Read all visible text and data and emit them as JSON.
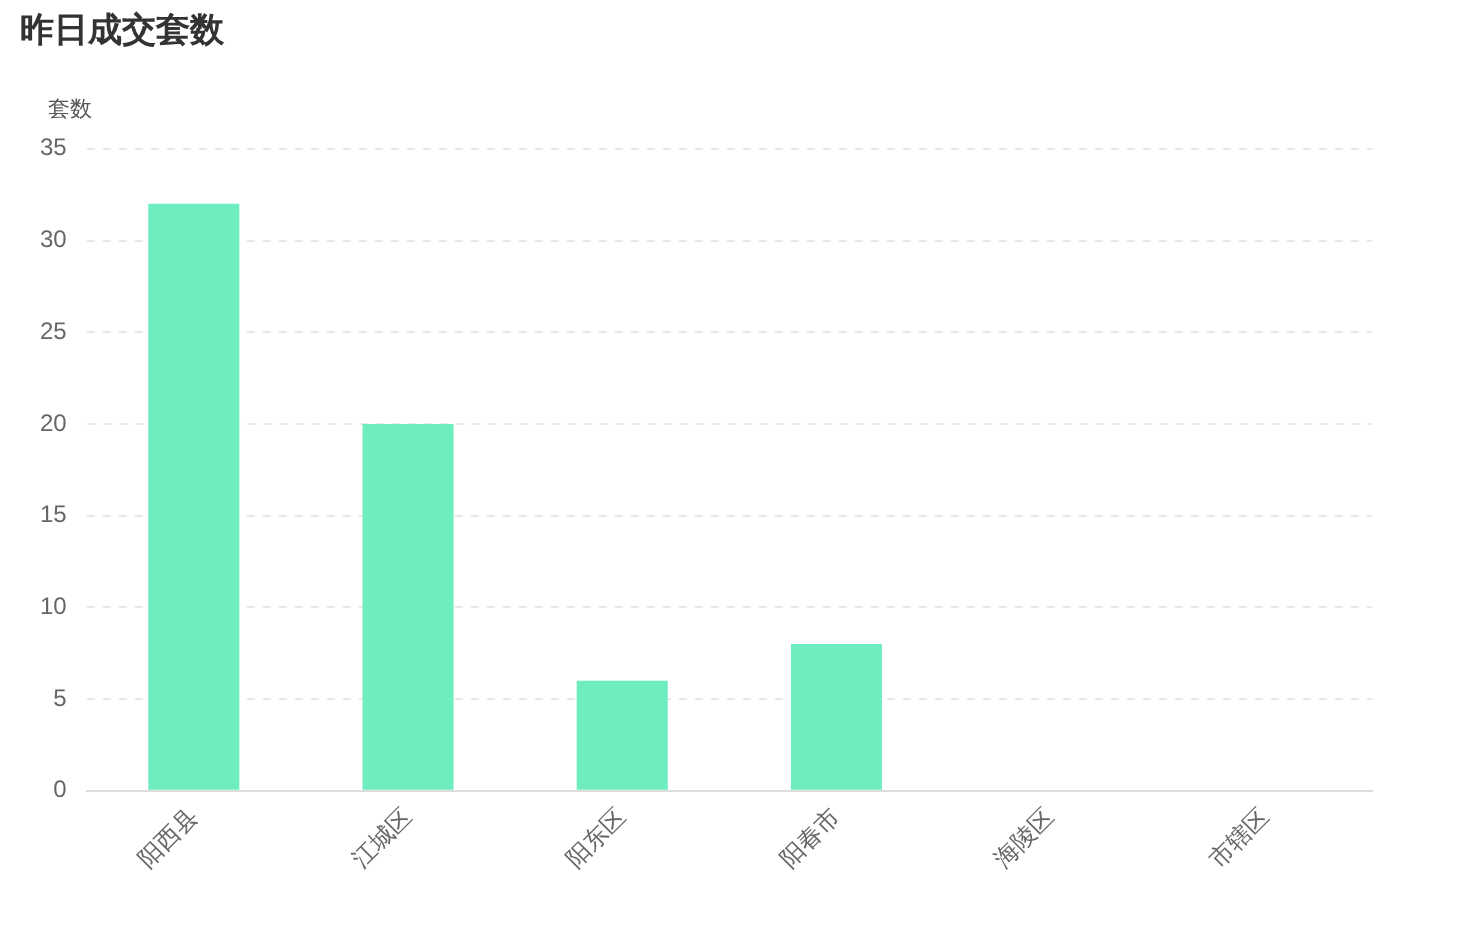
{
  "chart_data": {
    "type": "bar",
    "title": "昨日成交套数",
    "ylabel": "套数",
    "categories": [
      "阳西县",
      "江城区",
      "阳东区",
      "阳春市",
      "海陵区",
      "市辖区"
    ],
    "values": [
      32,
      20,
      6,
      8,
      0,
      0
    ],
    "color": "#6eedbf",
    "ylim": [
      0,
      35
    ],
    "yticks": [
      0,
      5,
      10,
      15,
      20,
      25,
      30,
      35
    ],
    "grid": "y"
  }
}
